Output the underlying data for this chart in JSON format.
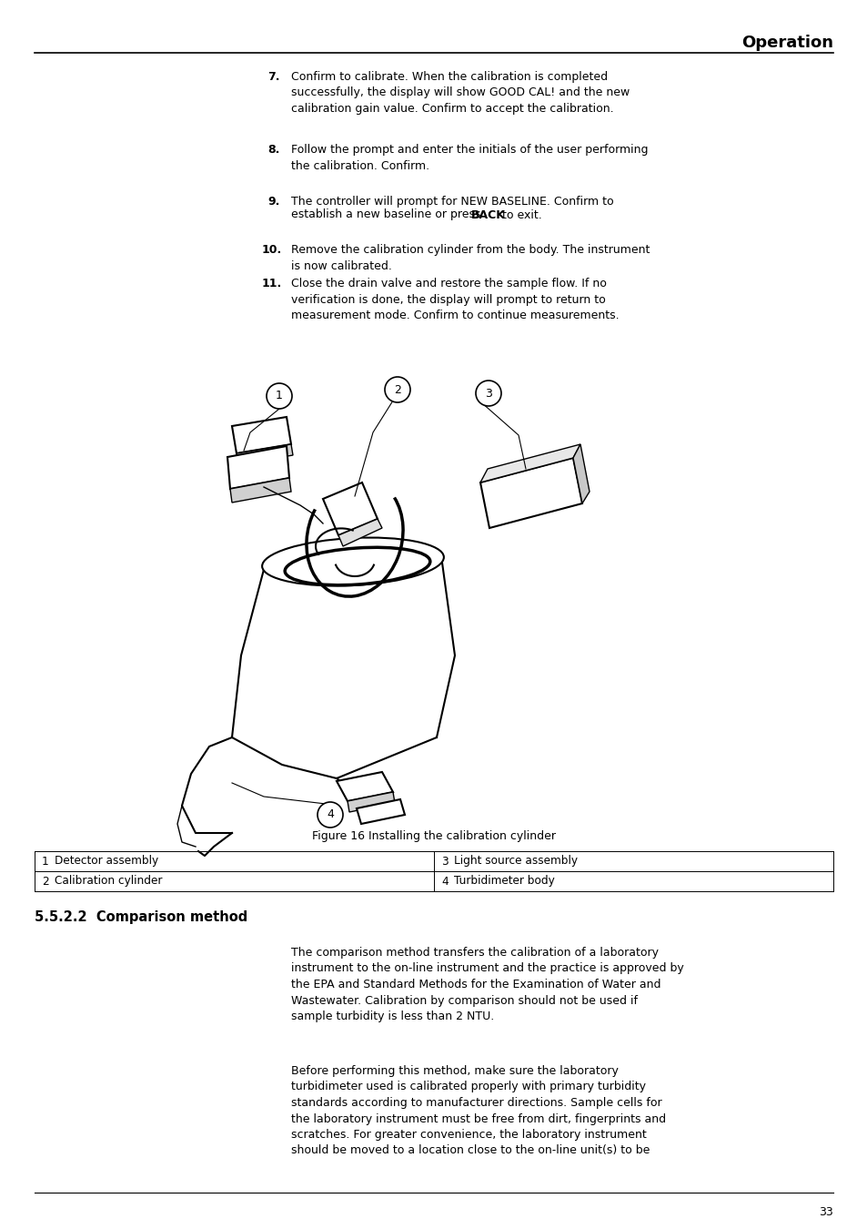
{
  "title": "Operation",
  "page_number": "33",
  "background_color": "#ffffff",
  "text_color": "#000000",
  "figure_caption": "Figure 16 Installing the calibration cylinder",
  "table_rows": [
    [
      "1",
      "Detector assembly",
      "3",
      "Light source assembly"
    ],
    [
      "2",
      "Calibration cylinder",
      "4",
      "Turbidimeter body"
    ]
  ],
  "section_heading": "5.5.2.2  Comparison method",
  "para1": "The comparison method transfers the calibration of a laboratory\ninstrument to the on-line instrument and the practice is approved by\nthe EPA and Standard Methods for the Examination of Water and\nWastewater. Calibration by comparison should not be used if\nsample turbidity is less than 2 NTU.",
  "para2": "Before performing this method, make sure the laboratory\nturbidimeter used is calibrated properly with primary turbidity\nstandards according to manufacturer directions. Sample cells for\nthe laboratory instrument must be free from dirt, fingerprints and\nscratches. For greater convenience, the laboratory instrument\nshould be moved to a location close to the on-line unit(s) to be"
}
